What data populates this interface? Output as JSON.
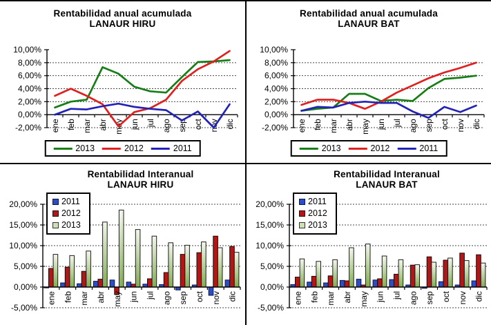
{
  "page": {
    "background": "#ffffff",
    "divider_color": "#000000"
  },
  "months": [
    "ene",
    "feb",
    "mar",
    "abr",
    "may",
    "jun",
    "jul",
    "ago",
    "sep",
    "oct",
    "nov",
    "dic"
  ],
  "colors": {
    "line_2013": "#177d17",
    "line_2012": "#e01f1f",
    "line_2011": "#2222b8",
    "bar_2011": "#2d4dc5",
    "bar_2011_border": "#0c1547",
    "bar_2012": "#b21717",
    "bar_2012_border": "#240404",
    "bar_2013_top": "#f3f7ec",
    "bar_2013_bottom": "#82ac51",
    "bar_2013_border": "#1c1c1c",
    "gridline": "#444444",
    "axis": "#000000"
  },
  "chart_data": [
    {
      "id": "acumulada-hiru",
      "type": "line",
      "title_line1": "Rentabilidad anual acumulada",
      "title_line2": "LANAUR HIRU",
      "categories": [
        "ene",
        "feb",
        "mar",
        "abr",
        "may",
        "jun",
        "jul",
        "ago",
        "sep",
        "oct",
        "nov",
        "dic"
      ],
      "series": [
        {
          "name": "2013",
          "color": "#177d17",
          "values": [
            1.1,
            2.0,
            2.3,
            7.3,
            6.3,
            4.3,
            3.6,
            3.4,
            5.8,
            8.1,
            8.2,
            8.4
          ]
        },
        {
          "name": "2012",
          "color": "#e01f1f",
          "values": [
            2.9,
            4.0,
            2.9,
            1.6,
            -1.8,
            0.4,
            1.0,
            2.3,
            5.2,
            7.0,
            8.2,
            9.8
          ]
        },
        {
          "name": "2011",
          "color": "#2222b8",
          "values": [
            0.0,
            0.9,
            0.8,
            1.3,
            1.7,
            1.2,
            0.9,
            0.7,
            -0.9,
            0.5,
            -2.0,
            1.6
          ]
        }
      ],
      "ylim": [
        -2,
        10
      ],
      "ytick_values": [
        10,
        8,
        6,
        4,
        2,
        0,
        -2
      ],
      "ytick_labels": [
        "10,00%",
        "8,00%",
        "6,00%",
        "4,00%",
        "2,00%",
        "0,00%",
        "-2,00%"
      ],
      "gridline_values": [
        8,
        6,
        4,
        2,
        -2
      ],
      "grid": "dashed",
      "legend": {
        "position": "bottom",
        "items": [
          {
            "label": "2013",
            "color": "#177d17"
          },
          {
            "label": "2012",
            "color": "#e01f1f"
          },
          {
            "label": "2011",
            "color": "#2222b8"
          }
        ]
      }
    },
    {
      "id": "acumulada-bat",
      "type": "line",
      "title_line1": "Rentabilidad anual acumulada",
      "title_line2": "LANAUR BAT",
      "categories": [
        "ene",
        "feb",
        "mar",
        "abr",
        "may",
        "jun",
        "jul",
        "ago",
        "sep",
        "oct",
        "nov",
        "dic"
      ],
      "series": [
        {
          "name": "2013",
          "color": "#177d17",
          "values": [
            0.6,
            0.9,
            1.1,
            3.2,
            3.2,
            2.1,
            2.3,
            2.1,
            4.1,
            5.5,
            5.7,
            6.0
          ]
        },
        {
          "name": "2012",
          "color": "#e01f1f",
          "values": [
            1.5,
            2.3,
            2.3,
            1.8,
            0.9,
            2.0,
            3.4,
            4.5,
            5.6,
            6.5,
            7.2,
            8.0
          ]
        },
        {
          "name": "2011",
          "color": "#2222b8",
          "values": [
            0.6,
            1.2,
            1.1,
            1.8,
            2.0,
            1.8,
            1.8,
            0.5,
            -0.5,
            1.2,
            0.4,
            1.4
          ]
        }
      ],
      "ylim": [
        -2,
        10
      ],
      "ytick_values": [
        10,
        8,
        6,
        4,
        2,
        0,
        -2
      ],
      "ytick_labels": [
        "10,00%",
        "8,00%",
        "6,00%",
        "4,00%",
        "2,00%",
        "0,00%",
        "-2,00%"
      ],
      "gridline_values": [
        8,
        6,
        4,
        2,
        -2
      ],
      "grid": "dashed",
      "legend": {
        "position": "bottom",
        "items": [
          {
            "label": "2013",
            "color": "#177d17"
          },
          {
            "label": "2012",
            "color": "#e01f1f"
          },
          {
            "label": "2011",
            "color": "#2222b8"
          }
        ]
      }
    },
    {
      "id": "interanual-hiru",
      "type": "bar",
      "title_line1": "Rentabilidad Interanual",
      "title_line2": "LANAUR HIRU",
      "categories": [
        "ene",
        "feb",
        "mar",
        "abr",
        "may",
        "jun",
        "jul",
        "ago",
        "sep",
        "oct",
        "nov",
        "dic"
      ],
      "series": [
        {
          "name": "2011",
          "color": "#2d4dc5",
          "border": "#0c1547",
          "values": [
            -0.2,
            1.0,
            0.8,
            1.4,
            1.7,
            1.2,
            0.7,
            0.6,
            -0.7,
            0.5,
            -2.0,
            1.7
          ]
        },
        {
          "name": "2012",
          "color": "#b21717",
          "border": "#240404",
          "values": [
            4.5,
            4.8,
            3.8,
            1.9,
            -1.8,
            0.7,
            2.0,
            3.5,
            7.9,
            8.3,
            12.3,
            9.8
          ]
        },
        {
          "name": "2013",
          "gradient": [
            "#f3f7ec",
            "#82ac51"
          ],
          "border": "#1c1c1c",
          "values": [
            7.9,
            7.6,
            8.7,
            15.7,
            18.6,
            13.9,
            12.3,
            10.7,
            10.1,
            10.9,
            9.5,
            8.4
          ]
        }
      ],
      "ylim": [
        -5,
        20
      ],
      "ytick_values": [
        20,
        15,
        10,
        5,
        0,
        -5
      ],
      "ytick_labels": [
        "20,00%",
        "15,00%",
        "10,00%",
        "5,00%",
        "0,00%",
        "-5,00%"
      ],
      "gridline_values": [
        20,
        15,
        10,
        5,
        -5
      ],
      "grid": "dashed",
      "legend": {
        "position": "top-left",
        "items": [
          {
            "label": "2011",
            "color": "#2d4dc5",
            "border": "#0c1547"
          },
          {
            "label": "2012",
            "color": "#b21717",
            "border": "#240404"
          },
          {
            "label": "2013",
            "color": "#cfe0b4",
            "border": "#333333"
          }
        ]
      }
    },
    {
      "id": "interanual-bat",
      "type": "bar",
      "title_line1": "Rentabilidad Interanual",
      "title_line2": "LANAUR BAT",
      "categories": [
        "ene",
        "feb",
        "mar",
        "abr",
        "may",
        "jun",
        "jul",
        "ago",
        "sep",
        "oct",
        "nov",
        "dic"
      ],
      "series": [
        {
          "name": "2011",
          "color": "#2d4dc5",
          "border": "#0c1547",
          "values": [
            0.6,
            1.2,
            1.0,
            1.6,
            1.9,
            1.7,
            1.8,
            0.5,
            -0.3,
            1.3,
            0.5,
            1.5
          ]
        },
        {
          "name": "2012",
          "color": "#b21717",
          "border": "#240404",
          "values": [
            2.4,
            2.6,
            2.7,
            1.5,
            0.5,
            2.0,
            3.1,
            5.3,
            7.3,
            6.5,
            8.2,
            7.8
          ]
        },
        {
          "name": "2013",
          "gradient": [
            "#f3f7ec",
            "#82ac51"
          ],
          "border": "#1c1c1c",
          "values": [
            6.8,
            6.2,
            6.6,
            9.5,
            10.4,
            7.5,
            6.6,
            5.4,
            6.0,
            7.0,
            6.4,
            5.8
          ]
        }
      ],
      "ylim": [
        -5,
        20
      ],
      "ytick_values": [
        20,
        15,
        10,
        5,
        0,
        -5
      ],
      "ytick_labels": [
        "20,00%",
        "15,00%",
        "10,00%",
        "5,00%",
        "0,00%",
        "-5,00%"
      ],
      "gridline_values": [
        20,
        15,
        10,
        5,
        -5
      ],
      "grid": "dashed",
      "legend": {
        "position": "top-left",
        "items": [
          {
            "label": "2011",
            "color": "#2d4dc5",
            "border": "#0c1547"
          },
          {
            "label": "2012",
            "color": "#b21717",
            "border": "#240404"
          },
          {
            "label": "2013",
            "color": "#cfe0b4",
            "border": "#333333"
          }
        ]
      }
    }
  ]
}
